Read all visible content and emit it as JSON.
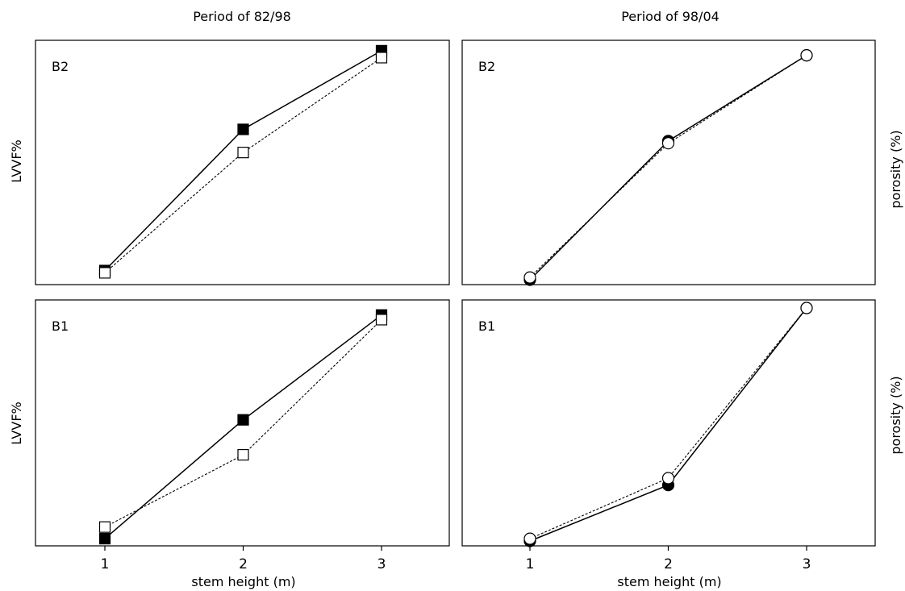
{
  "figure": {
    "col_titles": [
      "Period of 82/98",
      "Period of 98/04"
    ],
    "xlabel": "stem height (m)",
    "ylabel_left": "LVVF%",
    "ylabel_right": "porosity (%)"
  },
  "chart_data": [
    {
      "type": "line",
      "panel": "B2",
      "title": "Period of 82/98",
      "xlabel": "",
      "ylabel": "LVVF%",
      "x": [
        1,
        2,
        3
      ],
      "xlim": [
        0.5,
        3.5
      ],
      "ylim": [
        0,
        1
      ],
      "y_ticks_shown": false,
      "grid": false,
      "series": [
        {
          "line": "solid",
          "marker": "square-filled",
          "color": "#000000",
          "values": [
            0.04,
            0.65,
            0.99
          ]
        },
        {
          "line": "dotted",
          "marker": "square-open",
          "color": "#000000",
          "values": [
            0.03,
            0.55,
            0.96
          ]
        }
      ]
    },
    {
      "type": "line",
      "panel": "B2",
      "title": "Period of 98/04",
      "xlabel": "",
      "ylabel": "porosity (%)",
      "x": [
        1,
        2,
        3
      ],
      "xlim": [
        0.5,
        3.5
      ],
      "ylim": [
        0,
        1
      ],
      "y_ticks_shown": false,
      "grid": false,
      "series": [
        {
          "line": "solid",
          "marker": "circle-filled",
          "color": "#000000",
          "values": [
            0.0,
            0.6,
            0.97
          ]
        },
        {
          "line": "dotted",
          "marker": "circle-open",
          "color": "#000000",
          "values": [
            0.01,
            0.59,
            0.97
          ]
        }
      ]
    },
    {
      "type": "line",
      "panel": "B1",
      "title": "",
      "xlabel": "stem height (m)",
      "ylabel": "LVVF%",
      "x": [
        1,
        2,
        3
      ],
      "xlim": [
        0.5,
        3.5
      ],
      "ylim": [
        0,
        1
      ],
      "y_ticks_shown": false,
      "grid": false,
      "series": [
        {
          "line": "solid",
          "marker": "square-filled",
          "color": "#000000",
          "values": [
            0.01,
            0.52,
            0.97
          ]
        },
        {
          "line": "dotted",
          "marker": "square-open",
          "color": "#000000",
          "values": [
            0.06,
            0.37,
            0.95
          ]
        }
      ]
    },
    {
      "type": "line",
      "panel": "B1",
      "title": "",
      "xlabel": "stem height (m)",
      "ylabel": "porosity (%)",
      "x": [
        1,
        2,
        3
      ],
      "xlim": [
        0.5,
        3.5
      ],
      "ylim": [
        0,
        1
      ],
      "y_ticks_shown": false,
      "grid": false,
      "series": [
        {
          "line": "solid",
          "marker": "circle-filled",
          "color": "#000000",
          "values": [
            0.0,
            0.24,
            1.0
          ]
        },
        {
          "line": "dotted",
          "marker": "circle-open",
          "color": "#000000",
          "values": [
            0.01,
            0.27,
            1.0
          ]
        }
      ]
    }
  ]
}
